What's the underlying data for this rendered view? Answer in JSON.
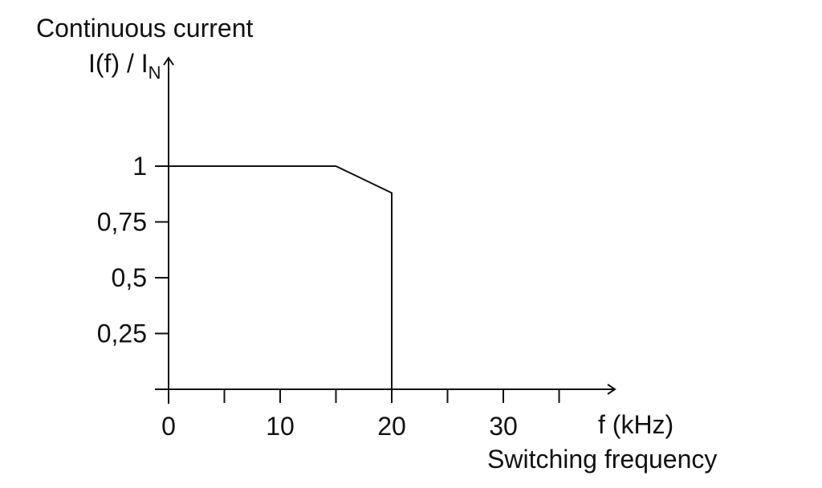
{
  "chart_data": {
    "type": "line",
    "ylabel_title": "Continuous current",
    "ylabel_main": "I(f) / I",
    "ylabel_sub": "N",
    "xlabel_unit": "f (kHz)",
    "xlabel": "Switching frequency",
    "xlim": [
      0,
      40
    ],
    "ylim": [
      0,
      1.45
    ],
    "x_ticks": [
      0,
      5,
      10,
      15,
      20,
      25,
      30,
      35
    ],
    "x_tick_labels": [
      {
        "value": 0,
        "label": "0"
      },
      {
        "value": 10,
        "label": "10"
      },
      {
        "value": 20,
        "label": "20"
      },
      {
        "value": 30,
        "label": "30"
      }
    ],
    "y_ticks": [
      {
        "value": 0.25,
        "label": "0,25"
      },
      {
        "value": 0.5,
        "label": "0,5"
      },
      {
        "value": 0.75,
        "label": "0,75"
      },
      {
        "value": 1,
        "label": "1"
      }
    ],
    "series": [
      {
        "x": [
          0,
          15,
          20,
          20
        ],
        "y": [
          1,
          1,
          0.88,
          0
        ]
      }
    ],
    "grid": false
  }
}
